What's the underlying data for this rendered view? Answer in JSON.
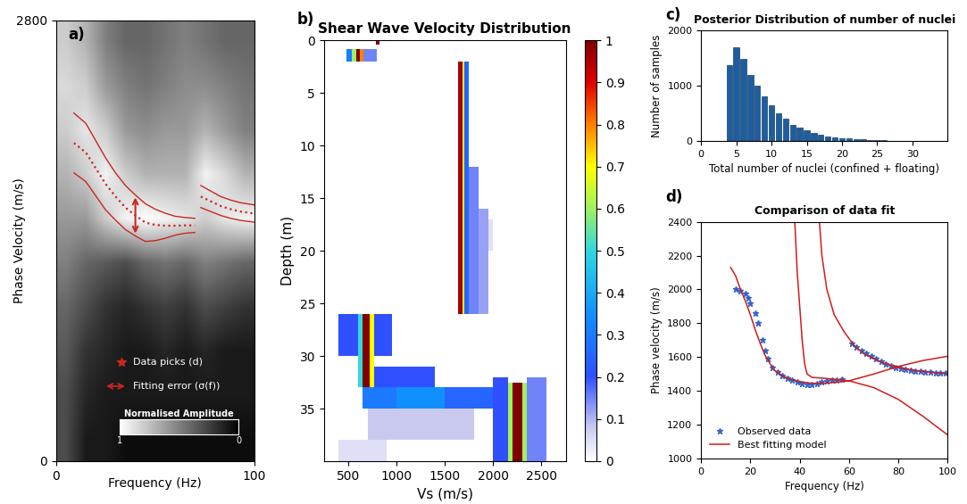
{
  "chart_data": [
    {
      "type": "heatmap",
      "label": "a)",
      "x_label": "Frequency (Hz)",
      "y_label": "Phase Velocity (m/s)",
      "xlim": [
        0,
        100
      ],
      "ylim": [
        0,
        2800
      ],
      "xticks": [
        0,
        100
      ],
      "yticks": [
        0,
        2800
      ],
      "amplitude": [
        [
          0.3,
          0.1,
          0.1,
          0.05,
          0.05,
          0.05,
          0.05,
          0.05,
          0.05,
          0.05
        ],
        [
          0.3,
          0.15,
          0.1,
          0.1,
          0.1,
          0.1,
          0.1,
          0.1,
          0.1,
          0.1
        ],
        [
          0.35,
          0.2,
          0.15,
          0.1,
          0.1,
          0.15,
          0.1,
          0.15,
          0.1,
          0.1
        ],
        [
          0.4,
          0.3,
          0.2,
          0.15,
          0.2,
          0.25,
          0.2,
          0.3,
          0.25,
          0.2
        ],
        [
          0.5,
          0.4,
          0.35,
          0.3,
          0.4,
          0.45,
          0.4,
          0.5,
          0.45,
          0.4
        ],
        [
          0.6,
          0.6,
          0.8,
          0.95,
          1.0,
          0.95,
          0.9,
          0.8,
          0.9,
          0.95
        ],
        [
          0.7,
          0.8,
          0.95,
          0.8,
          0.7,
          0.7,
          0.7,
          0.95,
          0.85,
          0.7
        ],
        [
          0.8,
          0.9,
          0.8,
          0.6,
          0.55,
          0.6,
          0.6,
          0.7,
          0.6,
          0.5
        ],
        [
          0.85,
          0.8,
          0.6,
          0.5,
          0.45,
          0.5,
          0.55,
          0.55,
          0.5,
          0.45
        ],
        [
          0.8,
          0.7,
          0.5,
          0.4,
          0.4,
          0.45,
          0.5,
          0.45,
          0.4,
          0.4
        ]
      ],
      "color_range": [
        0,
        1
      ],
      "color_ticks": [
        1,
        0
      ],
      "color_label": "Normalised Amplitude",
      "color": "#c8281e",
      "line_style": "dotted",
      "series": [
        {
          "x": [
            9,
            15,
            20,
            25,
            30,
            35,
            40,
            45,
            50,
            55,
            60,
            65,
            70
          ],
          "values": [
            2020,
            1960,
            1860,
            1760,
            1680,
            1610,
            1560,
            1515,
            1500,
            1495,
            1495,
            1497,
            1497
          ],
          "error": [
            190,
            185,
            175,
            165,
            150,
            140,
            130,
            120,
            100,
            80,
            60,
            50,
            45
          ]
        },
        {
          "x": [
            73,
            78,
            83,
            88,
            93,
            100
          ],
          "values": [
            1680,
            1650,
            1620,
            1600,
            1585,
            1572
          ],
          "error": [
            70,
            65,
            60,
            58,
            56,
            55
          ]
        }
      ],
      "picks_label": "Data picks (d)",
      "error_label": "Fitting error (σ(f))"
    },
    {
      "type": "heatmap",
      "label": "b)",
      "title": "Shear Wave Velocity Distribution",
      "x_label": "Vs (m/s)",
      "y_label": "Depth (m)",
      "xlim": [
        250,
        2750
      ],
      "ylim": [
        40,
        0
      ],
      "xticks": [
        500,
        1000,
        1500,
        2000,
        2500
      ],
      "yticks": [
        0,
        5,
        10,
        15,
        20,
        25,
        30,
        35
      ],
      "cells": [
        [
          0,
          0.4,
          790,
          820,
          1.0
        ],
        [
          0.8,
          2,
          480,
          540,
          0.3
        ],
        [
          0.8,
          2,
          540,
          580,
          0.6
        ],
        [
          0.8,
          2,
          580,
          620,
          1.0
        ],
        [
          0.8,
          2,
          620,
          660,
          0.8
        ],
        [
          0.8,
          2,
          660,
          800,
          0.15
        ],
        [
          2,
          26,
          1640,
          1660,
          0.95
        ],
        [
          2,
          26,
          1660,
          1680,
          1.0
        ],
        [
          2,
          26,
          1680,
          1700,
          0.7
        ],
        [
          2,
          26,
          1700,
          1750,
          0.25
        ],
        [
          12,
          26,
          1750,
          1850,
          0.15
        ],
        [
          16,
          26,
          1850,
          1950,
          0.12
        ],
        [
          17,
          20,
          1950,
          2000,
          0.05
        ],
        [
          26,
          30,
          400,
          600,
          0.2
        ],
        [
          26,
          30,
          770,
          950,
          0.2
        ],
        [
          26,
          33,
          600,
          650,
          0.5
        ],
        [
          26,
          33,
          650,
          720,
          1.0
        ],
        [
          26,
          33,
          720,
          770,
          0.7
        ],
        [
          31,
          33,
          770,
          1400,
          0.2
        ],
        [
          33,
          35,
          650,
          1000,
          0.3
        ],
        [
          33,
          35,
          1000,
          1500,
          0.35
        ],
        [
          33,
          35,
          1500,
          2100,
          0.25
        ],
        [
          35,
          38,
          700,
          1800,
          0.08
        ],
        [
          38,
          40,
          400,
          900,
          0.05
        ],
        [
          32,
          40,
          2000,
          2150,
          0.2
        ],
        [
          32,
          40,
          2350,
          2550,
          0.15
        ],
        [
          32.5,
          40,
          2150,
          2200,
          0.6
        ],
        [
          32.5,
          40,
          2200,
          2300,
          1.0
        ],
        [
          32.5,
          40,
          2300,
          2350,
          0.6
        ]
      ],
      "color_range": [
        0,
        1
      ],
      "color_ticks": [
        0,
        0.1,
        0.2,
        0.3,
        0.4,
        0.5,
        0.6,
        0.7,
        0.8,
        0.9,
        1
      ]
    },
    {
      "type": "bar",
      "label": "c)",
      "title": "Posterior Distribution of number of nuclei",
      "x_label": "Total number of nuclei (confined + floating)",
      "y_label": "Number of samples",
      "x": [
        4,
        5,
        6,
        7,
        8,
        9,
        10,
        11,
        12,
        13,
        14,
        15,
        16,
        17,
        18,
        19,
        20,
        21,
        22,
        23,
        24,
        25,
        26,
        27,
        28,
        29,
        30,
        31,
        32,
        33
      ],
      "values": [
        1370,
        1700,
        1480,
        1200,
        1000,
        800,
        640,
        500,
        400,
        300,
        250,
        190,
        150,
        115,
        90,
        70,
        55,
        45,
        35,
        28,
        22,
        18,
        13,
        10,
        8,
        6,
        5,
        4,
        3,
        2
      ],
      "color": "#1f5e9e",
      "xlim": [
        0,
        35
      ],
      "ylim": [
        0,
        2000
      ],
      "xticks": [
        0,
        5,
        10,
        15,
        20,
        25,
        30
      ],
      "yticks": [
        0,
        1000,
        2000
      ]
    },
    {
      "type": "line",
      "label": "d)",
      "title": "Comparison of data fit",
      "x_label": "Frequency (Hz)",
      "y_label": "Phase velocity (m/s)",
      "xlim": [
        0,
        100
      ],
      "ylim": [
        1000,
        2400
      ],
      "xticks": [
        0,
        20,
        40,
        60,
        80,
        100
      ],
      "yticks": [
        1000,
        1200,
        1400,
        1600,
        1800,
        2000,
        2200,
        2400
      ],
      "legend": "lower left",
      "series": [
        {
          "name": "Observed data",
          "type": "scatter",
          "marker": "*",
          "color": "#3366cc",
          "x": [
            14,
            16,
            18,
            19,
            20,
            22,
            23,
            25,
            26,
            27,
            29,
            31,
            33,
            35,
            37,
            39,
            41,
            43,
            45,
            47,
            49,
            51,
            53,
            55,
            57,
            61,
            63,
            65,
            67,
            69,
            71,
            73,
            75,
            77,
            79,
            81,
            83,
            85,
            87,
            89,
            91,
            93,
            95,
            97,
            99
          ],
          "values": [
            2000,
            1990,
            1975,
            1950,
            1920,
            1860,
            1800,
            1700,
            1640,
            1590,
            1540,
            1510,
            1490,
            1475,
            1465,
            1455,
            1445,
            1440,
            1440,
            1445,
            1455,
            1460,
            1465,
            1465,
            1468,
            1680,
            1660,
            1640,
            1625,
            1605,
            1590,
            1575,
            1560,
            1550,
            1540,
            1535,
            1530,
            1525,
            1520,
            1515,
            1512,
            1510,
            1508,
            1507,
            1505
          ]
        },
        {
          "name": "Best fitting model",
          "type": "line",
          "color": "#d01c1c",
          "x": [
            12,
            14,
            16,
            18,
            20,
            22,
            24,
            26,
            28,
            30,
            33,
            36,
            40,
            45,
            50,
            60,
            70,
            80,
            90,
            100,
            null,
            38,
            39,
            40,
            41,
            42,
            43,
            45,
            50,
            60,
            70,
            80,
            90,
            100,
            null,
            48,
            49,
            51,
            54,
            58,
            62,
            66,
            70,
            75,
            80,
            85,
            90,
            95,
            100
          ],
          "values": [
            2130,
            2080,
            2000,
            1930,
            1850,
            1760,
            1680,
            1610,
            1560,
            1520,
            1490,
            1470,
            1455,
            1445,
            1445,
            1460,
            1500,
            1545,
            1580,
            1605,
            null,
            2400,
            2100,
            1900,
            1700,
            1560,
            1500,
            1480,
            1475,
            1460,
            1420,
            1350,
            1250,
            1140,
            null,
            2400,
            2200,
            2000,
            1850,
            1750,
            1670,
            1620,
            1590,
            1560,
            1540,
            1525,
            1515,
            1508,
            1500
          ]
        }
      ]
    }
  ]
}
